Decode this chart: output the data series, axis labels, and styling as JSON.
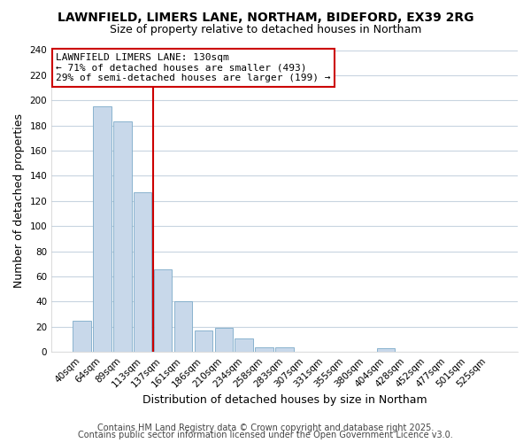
{
  "title": "LAWNFIELD, LIMERS LANE, NORTHAM, BIDEFORD, EX39 2RG",
  "subtitle": "Size of property relative to detached houses in Northam",
  "xlabel": "Distribution of detached houses by size in Northam",
  "ylabel": "Number of detached properties",
  "bar_color": "#c8d8ea",
  "bar_edge_color": "#7baac8",
  "categories": [
    "40sqm",
    "64sqm",
    "89sqm",
    "113sqm",
    "137sqm",
    "161sqm",
    "186sqm",
    "210sqm",
    "234sqm",
    "258sqm",
    "283sqm",
    "307sqm",
    "331sqm",
    "355sqm",
    "380sqm",
    "404sqm",
    "428sqm",
    "452sqm",
    "477sqm",
    "501sqm",
    "525sqm"
  ],
  "values": [
    25,
    195,
    183,
    127,
    66,
    40,
    17,
    19,
    11,
    4,
    4,
    0,
    0,
    0,
    0,
    3,
    0,
    0,
    0,
    0,
    0
  ],
  "ylim": [
    0,
    240
  ],
  "yticks": [
    0,
    20,
    40,
    60,
    80,
    100,
    120,
    140,
    160,
    180,
    200,
    220,
    240
  ],
  "vline_x_index": 4,
  "vline_color": "#cc0000",
  "annotation_title": "LAWNFIELD LIMERS LANE: 130sqm",
  "annotation_line1": "← 71% of detached houses are smaller (493)",
  "annotation_line2": "29% of semi-detached houses are larger (199) →",
  "annotation_box_facecolor": "#ffffff",
  "annotation_box_edgecolor": "#cc0000",
  "footer1": "Contains HM Land Registry data © Crown copyright and database right 2025.",
  "footer2": "Contains public sector information licensed under the Open Government Licence v3.0.",
  "background_color": "#ffffff",
  "plot_background": "#ffffff",
  "grid_color": "#c8d4e0",
  "title_fontsize": 10,
  "subtitle_fontsize": 9,
  "tick_fontsize": 7.5,
  "label_fontsize": 9,
  "footer_fontsize": 7,
  "annotation_fontsize": 8
}
